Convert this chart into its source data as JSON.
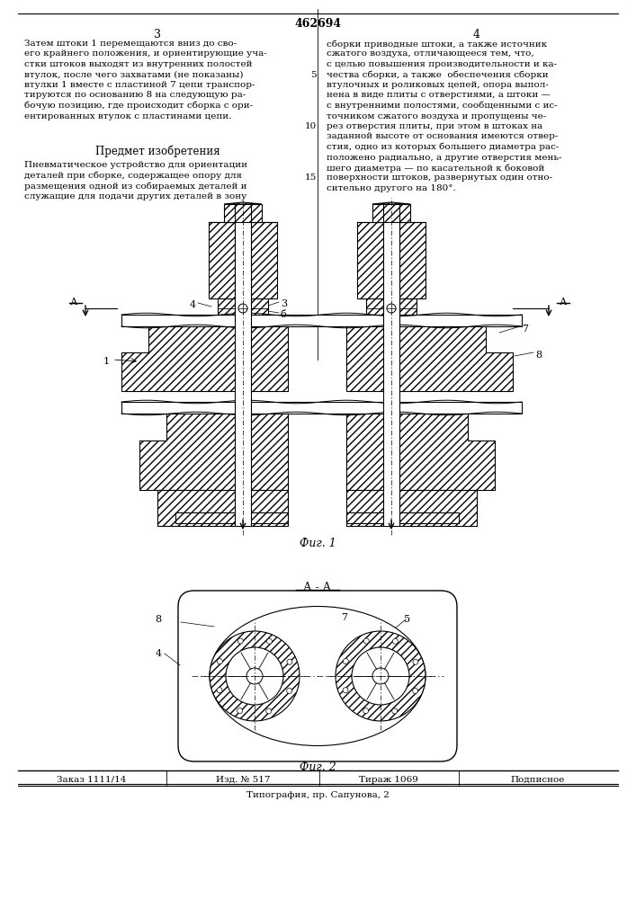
{
  "page_number_center": "462694",
  "col_left": "3",
  "col_right": "4",
  "text_left_1": "Затем штоки 1 перемещаются вниз до сво-\nего крайнего положения, и ориентирующие уча-\nстки штоков выходят из внутренних полостей\nвтулок, после чего захватами (не показаны)\nвтулки 1 вместе с пластиной 7 цепи транспор-\nтируются по основанию 8 на следующую ра-\nбочую позицию, где происходит сборка с ори-\nентированных втулок с пластинами цепи.",
  "predmet_title": "Предмет изобретения",
  "text_left_2": "Пневматическое устройство для ориентации\nдеталей при сборке, содержащее опору для\nразмещения одной из собираемых деталей и\nслужащие для подачи других деталей в зону",
  "text_right_1": "сборки приводные штоки, а также источник\nсжатого воздуха, отличающееся тем, что,\nс целью повышения производительности и ка-\nчества сборки, а также  обеспечения сборки\nвтулочных и роликовых цепей, опора выпол-\nнена в виде плиты с отверстиями, а штоки —\nс внутренними полостями, сообщенными с ис-\nточником сжатого воздуха и пропущены че-\nрез отверстия плиты, при этом в штоках на\nзаданной высоте от основания имеются отвер-\nстия, одно из которых большего диаметра рас-\nположено радиально, а другие отверстия мень-\nшего диаметра — по касательной к боковой\nповерхности штоков, развернутых один отно-\nсительно другого на 180°.",
  "fig1_caption": "Фиг. 1",
  "fig2_caption": "Фиг. 2",
  "section_label": "А - А",
  "footer_left": "Заказ 1111/14",
  "footer_mid1": "Изд. № 517",
  "footer_mid2": "Тираж 1069",
  "footer_right": "Подписное",
  "footer_bottom": "Типография, пр. Сапунова, 2",
  "bg_color": "#ffffff",
  "line_color": "#000000",
  "hatch_density": 5
}
